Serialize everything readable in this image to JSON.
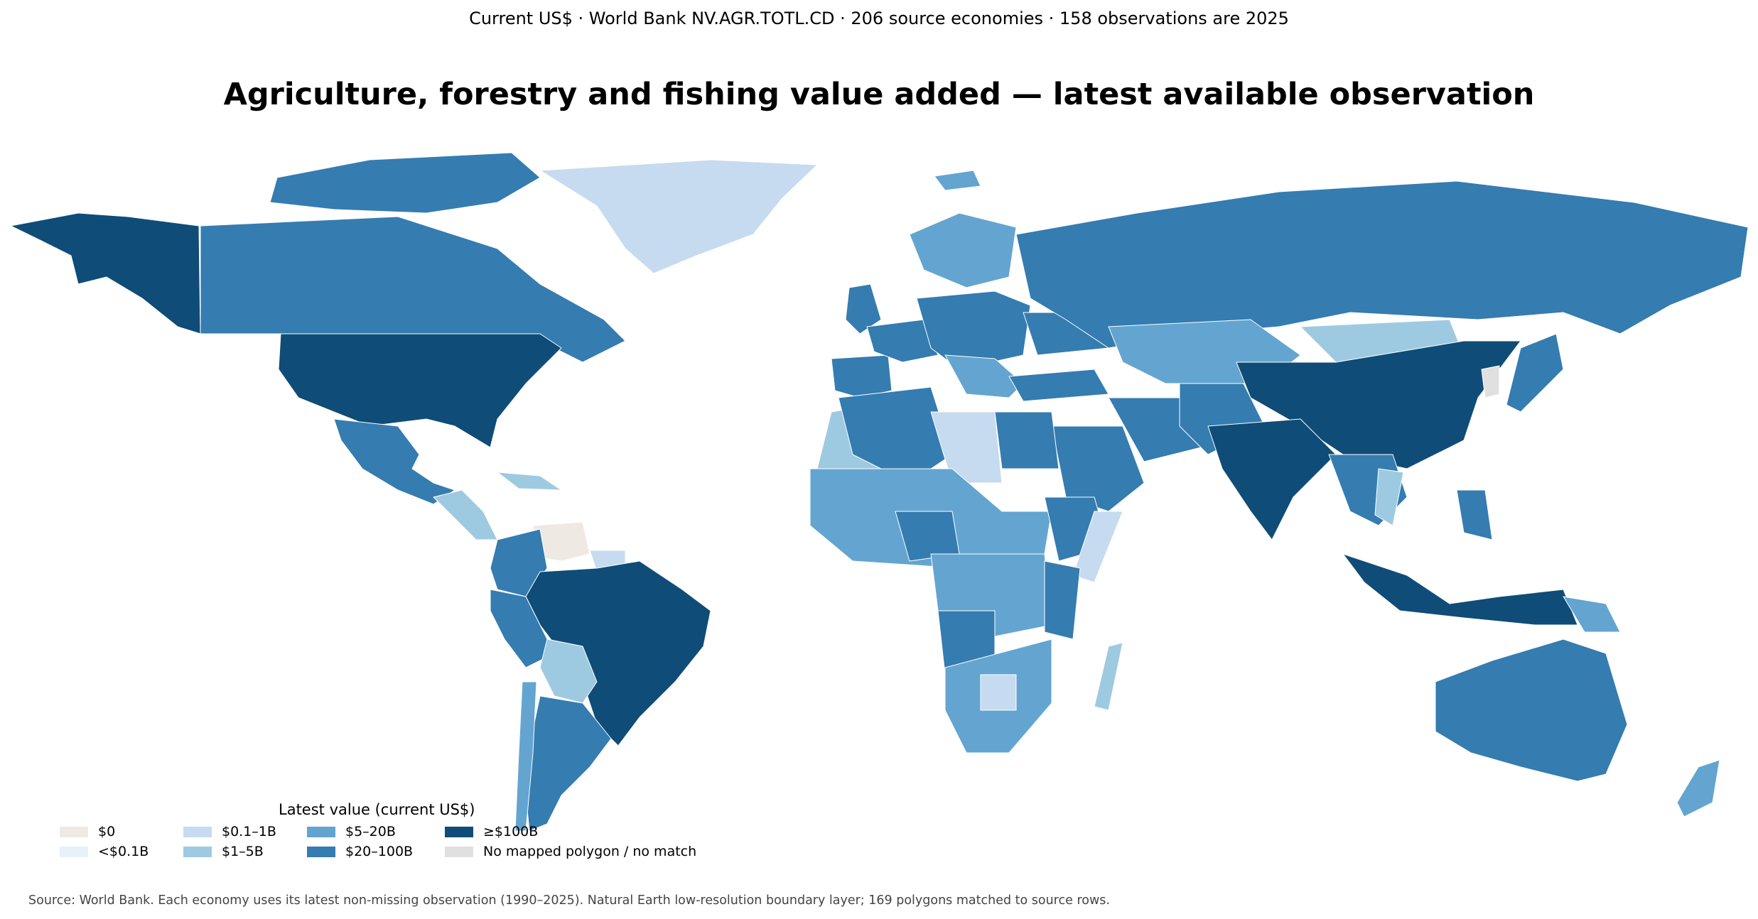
{
  "header": {
    "subtitle": "Current US$ · World Bank NV.AGR.TOTL.CD · 206 source economies · 158 observations are 2025",
    "title": "Agriculture, forestry and fishing value added — latest available observation"
  },
  "legend": {
    "title": "Latest value (current US$)",
    "items": [
      {
        "label": "$0",
        "color": "#efe9e4"
      },
      {
        "label": "<$0.1B",
        "color": "#e8f1fa"
      },
      {
        "label": "$0.1–1B",
        "color": "#c6dbef"
      },
      {
        "label": "$1–5B",
        "color": "#9ecae1"
      },
      {
        "label": "$5–20B",
        "color": "#63a5d0"
      },
      {
        "label": "$20–100B",
        "color": "#357cb0"
      },
      {
        "label": "≥$100B",
        "color": "#0f4c78"
      },
      {
        "label": "No mapped polygon / no match",
        "color": "#e0e0e0"
      }
    ]
  },
  "footer": {
    "source": "Source: World Bank. Each economy uses its latest non-missing observation (1990–2025). Natural Earth low-resolution boundary layer; 169 polygons matched to source rows."
  }
}
